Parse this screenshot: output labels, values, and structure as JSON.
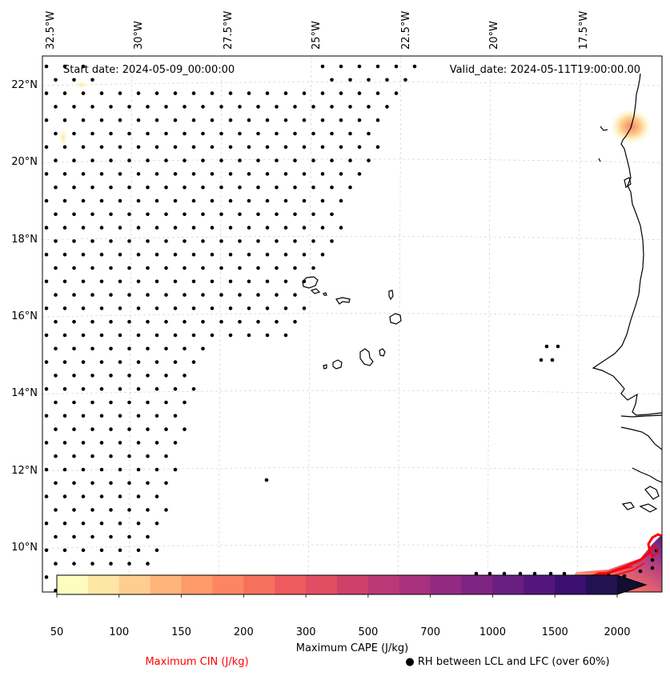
{
  "map": {
    "extent": {
      "lon": [
        -33.0,
        -15.0
      ],
      "lat": [
        8.9,
        22.8
      ]
    },
    "lon_ticks": [
      {
        "value": -32.5,
        "label": "32.5°W"
      },
      {
        "value": -30.0,
        "label": "30°W"
      },
      {
        "value": -27.5,
        "label": "27.5°W"
      },
      {
        "value": -25.0,
        "label": "25°W"
      },
      {
        "value": -22.5,
        "label": "22.5°W"
      },
      {
        "value": -20.0,
        "label": "20°W"
      },
      {
        "value": -17.5,
        "label": "17.5°W"
      }
    ],
    "lat_ticks": [
      {
        "value": 22,
        "label": "22°N"
      },
      {
        "value": 20,
        "label": "20°N"
      },
      {
        "value": 18,
        "label": "18°N"
      },
      {
        "value": 16,
        "label": "16°N"
      },
      {
        "value": 14,
        "label": "14°N"
      },
      {
        "value": 12,
        "label": "12°N"
      },
      {
        "value": 10,
        "label": "10°N"
      }
    ],
    "start_date_text": "Start date: 2024-05-09_00:00:00",
    "valid_date_text": "Valid_date: 2024-05-11T19:00:00.00"
  },
  "colorbar": {
    "title": "Maximum CAPE (J/kg)",
    "levels": [
      50,
      75,
      100,
      125,
      150,
      175,
      200,
      250,
      300,
      400,
      500,
      600,
      700,
      800,
      1000,
      1250,
      1500,
      1750,
      2000
    ],
    "tick_labels": [
      "50",
      "100",
      "150",
      "200",
      "300",
      "500",
      "700",
      "1000",
      "1500",
      "2000"
    ],
    "colors": [
      "#fcfdbf",
      "#fee6a4",
      "#fece90",
      "#feb47b",
      "#fd9b6b",
      "#fb8661",
      "#f7705c",
      "#ee5b5e",
      "#e14d63",
      "#cf4069",
      "#bb3876",
      "#a8317d",
      "#922a81",
      "#7e2482",
      "#691f81",
      "#53167c",
      "#3b0f70",
      "#231151",
      "#120d31"
    ],
    "extend": "max"
  },
  "legend": {
    "cin_label": "Maximum CIN (J/kg)",
    "cin_color": "#ff0000",
    "rh_label": "● RH between LCL and LFC (over 60%)"
  },
  "islands": [
    {
      "name": "Santo Antao"
    },
    {
      "name": "Sao Vicente"
    },
    {
      "name": "Santa Luzia"
    },
    {
      "name": "Sao Nicolau"
    },
    {
      "name": "Sal"
    },
    {
      "name": "Boa Vista"
    },
    {
      "name": "Maio"
    },
    {
      "name": "Santiago"
    },
    {
      "name": "Fogo"
    },
    {
      "name": "Brava"
    }
  ]
}
